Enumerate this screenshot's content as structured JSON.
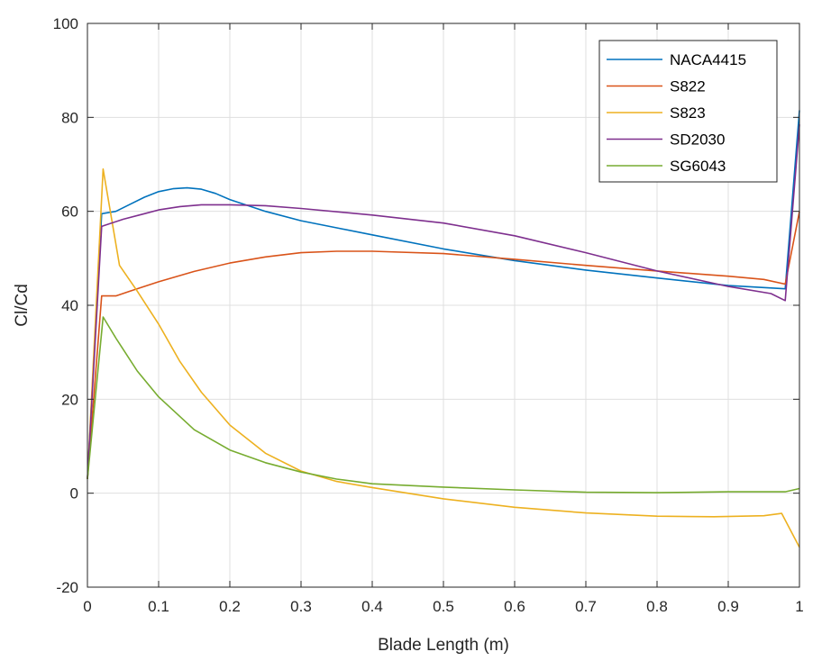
{
  "chart_data": {
    "type": "line",
    "title": "",
    "xlabel": "Blade Length (m)",
    "ylabel": "Cl/Cd",
    "xlim": [
      0,
      1
    ],
    "ylim": [
      -20,
      100
    ],
    "xticks": [
      0,
      0.1,
      0.2,
      0.3,
      0.4,
      0.5,
      0.6,
      0.7,
      0.8,
      0.9,
      1
    ],
    "yticks": [
      -20,
      0,
      20,
      40,
      60,
      80,
      100
    ],
    "xtick_labels": [
      "0",
      "0.1",
      "0.2",
      "0.3",
      "0.4",
      "0.5",
      "0.6",
      "0.7",
      "0.8",
      "0.9",
      "1"
    ],
    "ytick_labels": [
      "-20",
      "0",
      "20",
      "40",
      "60",
      "80",
      "100"
    ],
    "grid": true,
    "legend_position": "top-right",
    "series": [
      {
        "name": "NACA4415",
        "color": "#0072BD",
        "x": [
          0,
          0.02,
          0.04,
          0.06,
          0.08,
          0.1,
          0.12,
          0.14,
          0.16,
          0.18,
          0.2,
          0.25,
          0.3,
          0.4,
          0.5,
          0.6,
          0.7,
          0.8,
          0.9,
          0.98,
          1.0
        ],
        "y": [
          3,
          59.5,
          60,
          61.5,
          63,
          64.2,
          64.8,
          65,
          64.7,
          63.8,
          62.5,
          60,
          58,
          55,
          52,
          49.5,
          47.5,
          45.8,
          44.2,
          43.5,
          81.5
        ]
      },
      {
        "name": "S822",
        "color": "#D95319",
        "x": [
          0,
          0.02,
          0.04,
          0.06,
          0.1,
          0.15,
          0.2,
          0.25,
          0.3,
          0.35,
          0.4,
          0.5,
          0.6,
          0.7,
          0.8,
          0.9,
          0.95,
          0.98,
          1.0
        ],
        "y": [
          3,
          42,
          42,
          43,
          45,
          47.2,
          49,
          50.3,
          51.2,
          51.5,
          51.5,
          51,
          49.8,
          48.5,
          47.3,
          46.2,
          45.5,
          44.5,
          60
        ]
      },
      {
        "name": "S823",
        "color": "#EDB120",
        "x": [
          0,
          0.022,
          0.045,
          0.07,
          0.1,
          0.13,
          0.16,
          0.2,
          0.25,
          0.3,
          0.35,
          0.4,
          0.5,
          0.6,
          0.7,
          0.8,
          0.88,
          0.95,
          0.975,
          1.0
        ],
        "y": [
          3,
          69,
          48.5,
          43,
          36,
          28,
          21.5,
          14.5,
          8.5,
          4.7,
          2.5,
          1.2,
          -1.2,
          -3,
          -4.2,
          -4.9,
          -5,
          -4.8,
          -4.3,
          -11.5
        ]
      },
      {
        "name": "SD2030",
        "color": "#7E2F8E",
        "x": [
          0,
          0.02,
          0.05,
          0.08,
          0.1,
          0.13,
          0.16,
          0.2,
          0.25,
          0.3,
          0.4,
          0.5,
          0.6,
          0.7,
          0.8,
          0.9,
          0.96,
          0.98,
          1.0
        ],
        "y": [
          3,
          56.8,
          58.3,
          59.5,
          60.3,
          61,
          61.4,
          61.4,
          61.2,
          60.6,
          59.2,
          57.5,
          54.8,
          51.2,
          47.3,
          44,
          42.5,
          41,
          78.5
        ]
      },
      {
        "name": "SG6043",
        "color": "#77AC30",
        "x": [
          0,
          0.022,
          0.04,
          0.07,
          0.1,
          0.15,
          0.2,
          0.25,
          0.3,
          0.35,
          0.4,
          0.5,
          0.6,
          0.7,
          0.8,
          0.9,
          0.98,
          1.0
        ],
        "y": [
          3,
          37.5,
          33,
          26,
          20.5,
          13.5,
          9.2,
          6.5,
          4.5,
          3,
          2,
          1.3,
          0.7,
          0.2,
          0.1,
          0.3,
          0.3,
          1
        ]
      }
    ]
  }
}
